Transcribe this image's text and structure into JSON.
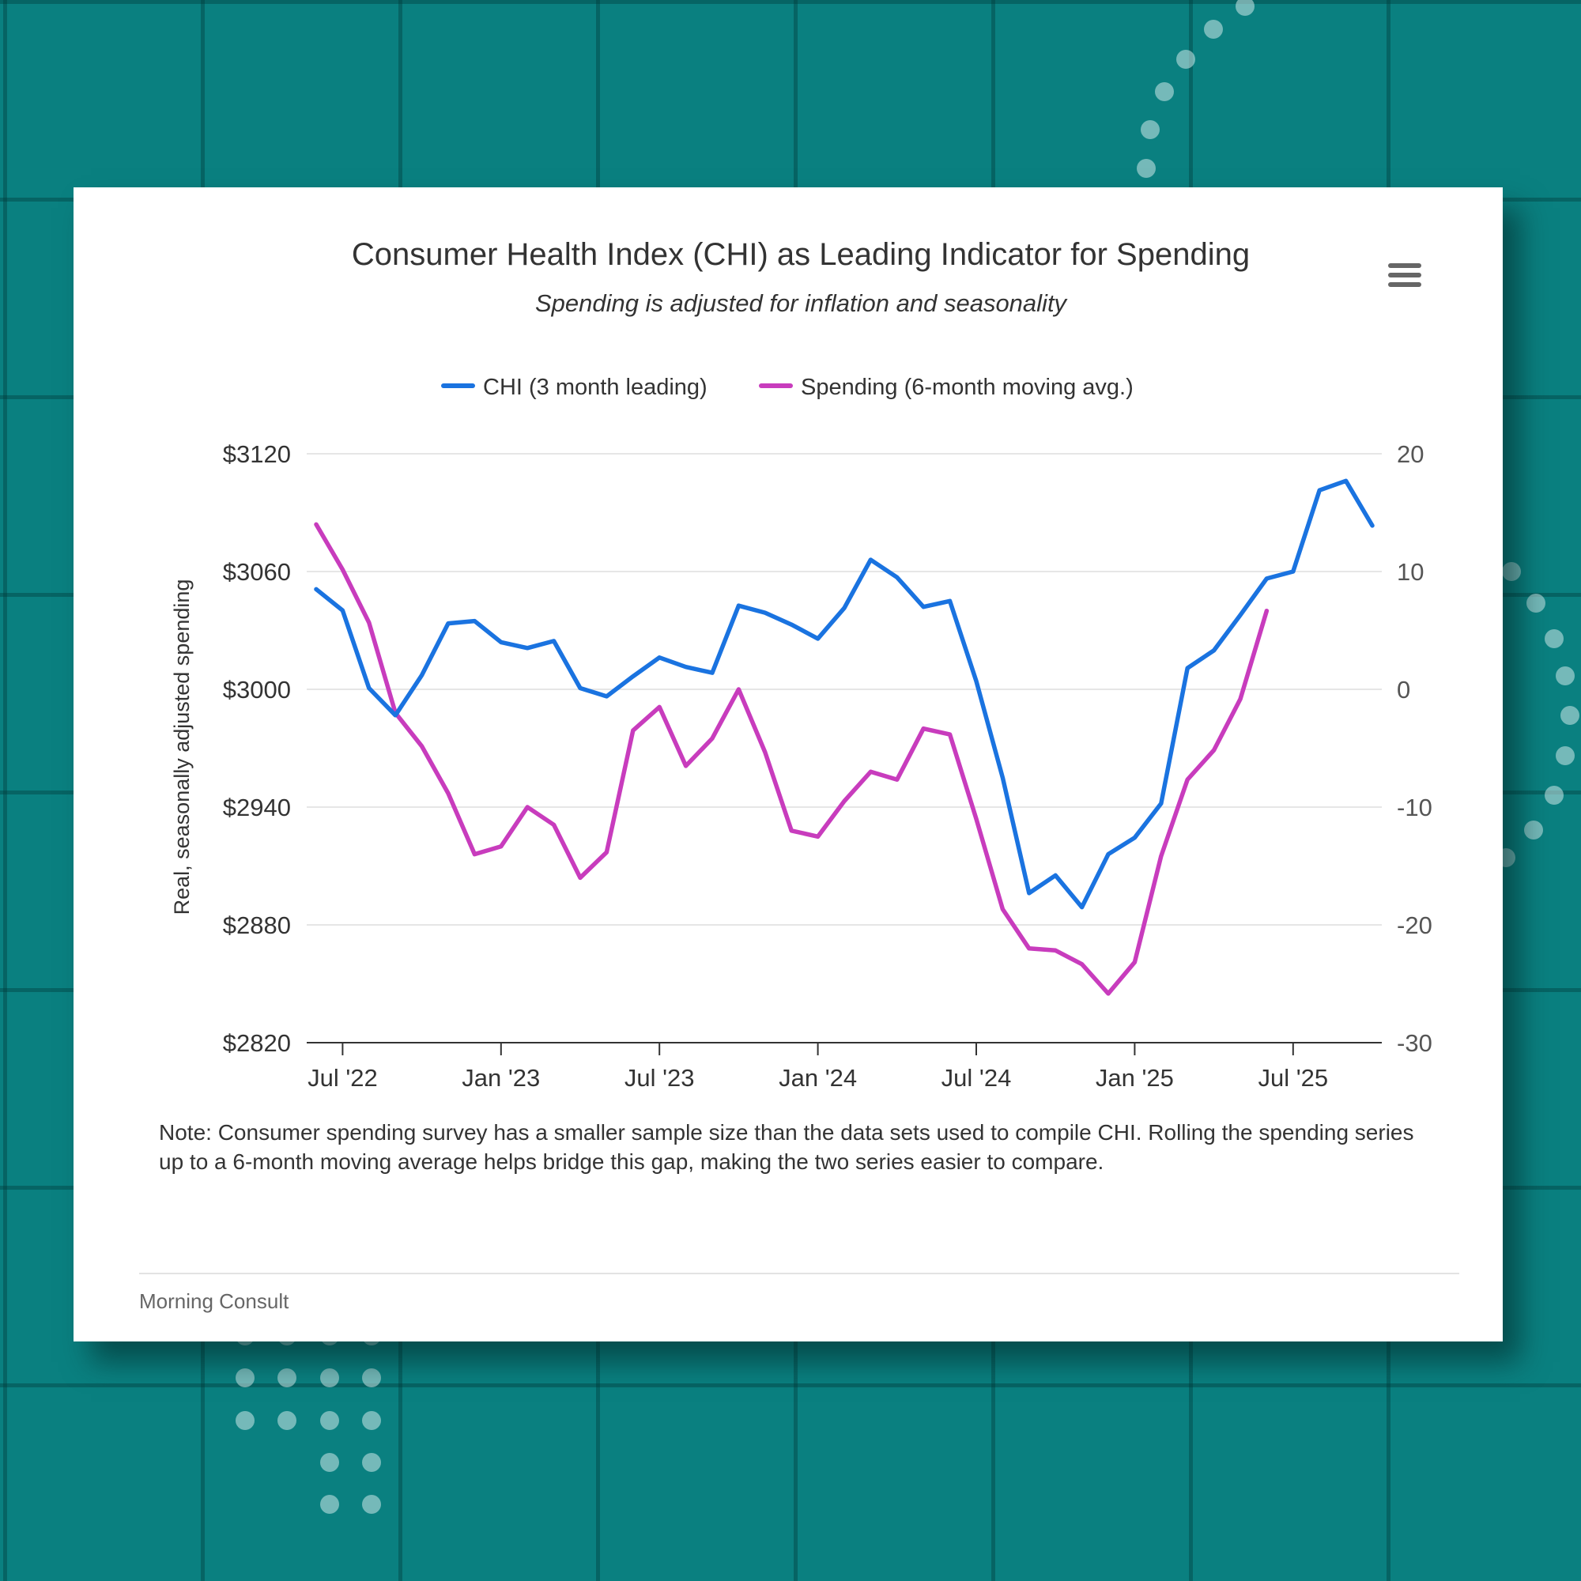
{
  "colors": {
    "background": "#0a8080",
    "chi_line": "#1a73e0",
    "spending_line": "#c83cbd",
    "card": "#ffffff"
  },
  "menu": {
    "icon": "hamburger-menu-icon"
  },
  "note": "Note: Consumer spending survey has a smaller sample size than the data sets used to compile CHI. Rolling the spending series up to a 6-month moving average helps bridge this gap, making the two series easier to compare.",
  "credit": "Morning Consult",
  "chart_data": {
    "type": "line",
    "title": "Consumer Health Index (CHI) as Leading Indicator for Spending",
    "subtitle": "Spending is adjusted for inflation and seasonality",
    "ylabel": "Real, seasonally adjusted spending",
    "y_left": {
      "ylim": [
        2820,
        3120
      ],
      "ticks": [
        2820,
        2880,
        2940,
        3000,
        3060,
        3120
      ],
      "tick_labels": [
        "$2820",
        "$2880",
        "$2940",
        "$3000",
        "$3060",
        "$3120"
      ]
    },
    "y_right": {
      "ylim": [
        -30,
        20
      ],
      "ticks": [
        -30,
        -20,
        -10,
        0,
        10,
        20
      ],
      "tick_labels": [
        "-30",
        "-20",
        "-10",
        "0",
        "10",
        "20"
      ]
    },
    "xlim": [
      "Jun 2022",
      "Oct 2025"
    ],
    "x_ticks": [
      "Jul '22",
      "Jan '23",
      "Jul '23",
      "Jan '24",
      "Jul '24",
      "Jan '25",
      "Jul '25"
    ],
    "x_tick_months": [
      1,
      7,
      13,
      19,
      25,
      31,
      37
    ],
    "grid": true,
    "legend_position": "top-center",
    "series": [
      {
        "name": "CHI (3 month leading)",
        "axis": "right",
        "color": "#1a73e0",
        "start_month": 0,
        "values": [
          8.5,
          6.7,
          0.1,
          -2.2,
          1.2,
          5.6,
          5.8,
          4.0,
          3.5,
          4.1,
          0.1,
          -0.6,
          1.1,
          2.7,
          1.9,
          1.4,
          7.1,
          6.5,
          5.5,
          4.3,
          6.9,
          11.0,
          9.5,
          7.0,
          7.5,
          0.7,
          -7.5,
          -17.3,
          -15.8,
          -18.5,
          -14.0,
          -12.6,
          -9.7,
          1.8,
          3.3,
          6.3,
          9.4,
          10.0,
          16.9,
          17.7,
          13.9
        ]
      },
      {
        "name": "Spending (6-month moving avg.)",
        "axis": "left",
        "color": "#c83cbd",
        "start_month": 0,
        "values": [
          3084,
          3061,
          3034,
          2988,
          2971,
          2947,
          2916,
          2920,
          2940,
          2931,
          2904,
          2917,
          2979,
          2991,
          2961,
          2975,
          3000,
          2968,
          2928,
          2925,
          2943,
          2958,
          2954,
          2980,
          2977,
          2934,
          2888,
          2868,
          2867,
          2860,
          2845,
          2861,
          2915,
          2954,
          2969,
          2995,
          3040
        ]
      }
    ]
  }
}
